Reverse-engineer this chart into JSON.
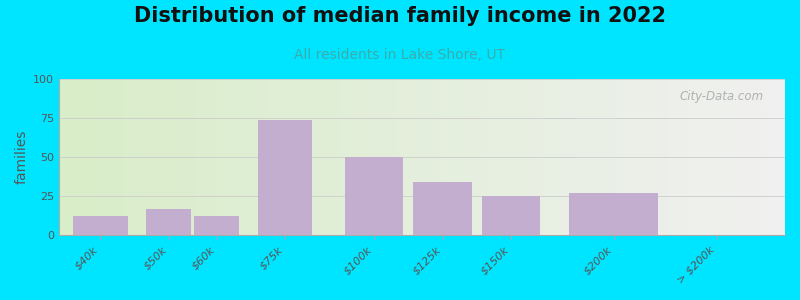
{
  "title": "Distribution of median family income in 2022",
  "subtitle": "All residents in Lake Shore, UT",
  "ylabel": "families",
  "categories": [
    "$40k",
    "$50k",
    "$60k",
    "$75k",
    "$100k",
    "$125k",
    "$150k",
    "$200k",
    "> $200k"
  ],
  "values": [
    12,
    17,
    12,
    74,
    50,
    34,
    25,
    27,
    0
  ],
  "bar_color": "#c4aed0",
  "ylim": [
    0,
    100
  ],
  "yticks": [
    0,
    25,
    50,
    75,
    100
  ],
  "background_outer": "#00e5ff",
  "watermark": "City-Data.com",
  "title_fontsize": 15,
  "subtitle_fontsize": 10,
  "subtitle_color": "#3aacac",
  "ylabel_fontsize": 10,
  "tick_fontsize": 8,
  "bar_positions": [
    0,
    1,
    1.7,
    2.7,
    4.0,
    5.0,
    6.0,
    7.5,
    9.0
  ],
  "bar_widths": [
    0.8,
    0.65,
    0.65,
    0.8,
    0.85,
    0.85,
    0.85,
    1.3,
    1.4
  ]
}
